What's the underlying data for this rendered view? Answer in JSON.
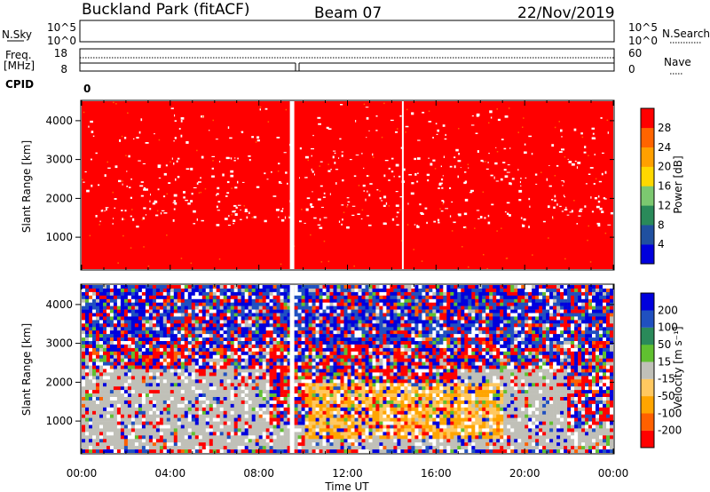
{
  "header": {
    "station": "Buckland Park (fitACF)",
    "beam": "Beam 07",
    "date": "22/Nov/2019"
  },
  "params": {
    "nsky_label": "N.Sky",
    "nsky_ticks": [
      "10^5",
      "10^0"
    ],
    "nsearch_label": "N.Search",
    "nsearch_ticks": [
      "10^5",
      "10^0"
    ],
    "freq_label_1": "Freq.",
    "freq_label_2": "[MHz]",
    "freq_ticks": [
      "18",
      "8"
    ],
    "nave_label": "Nave",
    "nave_ticks": [
      "60",
      "0"
    ],
    "cpid_label": "CPID",
    "cpid_value": "0"
  },
  "panels": {
    "ylabel": "Slant Range [km]",
    "xlabel": "Time UT",
    "x_ticks": [
      "00:00",
      "04:00",
      "08:00",
      "12:00",
      "16:00",
      "20:00",
      "00:00"
    ]
  },
  "colors": {
    "power": [
      "#0000dd",
      "#2050a0",
      "#2a8a5a",
      "#7cc870",
      "#ffd800",
      "#ffa000",
      "#ff6400",
      "#ff0000"
    ],
    "velocity": [
      "#ff0000",
      "#ff6000",
      "#ffa500",
      "#ffc860",
      "#c0c0b8",
      "#60c030",
      "#2a8a5a",
      "#2050c0",
      "#0000dd"
    ]
  },
  "chart_data": [
    {
      "type": "heatmap",
      "title": "",
      "xlabel": "",
      "ylabel": "Slant Range [km]",
      "x_ticks": [
        "00:00",
        "04:00",
        "08:00",
        "12:00",
        "16:00",
        "20:00",
        "00:00"
      ],
      "y_ticks": [
        "1000",
        "2000",
        "3000",
        "4000"
      ],
      "ylim": [
        180,
        4500
      ],
      "colorbar": {
        "label": "Power [dB]",
        "ticks": [
          "4",
          "8",
          "12",
          "16",
          "20",
          "24",
          "28"
        ],
        "range": [
          0,
          32
        ]
      },
      "data_gaps_hours": [
        9.5,
        14.5
      ],
      "dominant_value": 30
    },
    {
      "type": "heatmap",
      "title": "",
      "xlabel": "Time UT",
      "ylabel": "Slant Range [km]",
      "x_ticks": [
        "00:00",
        "04:00",
        "08:00",
        "12:00",
        "16:00",
        "20:00",
        "00:00"
      ],
      "y_ticks": [
        "1000",
        "2000",
        "3000",
        "4000"
      ],
      "ylim": [
        180,
        4500
      ],
      "colorbar": {
        "label": "Velocity [m s⁻¹]",
        "ticks": [
          "200",
          "100",
          "50",
          "15",
          "-15",
          "-50",
          "-100",
          "-200"
        ],
        "range": [
          -250,
          250
        ]
      },
      "data_gaps_hours": [
        9.5
      ]
    }
  ]
}
